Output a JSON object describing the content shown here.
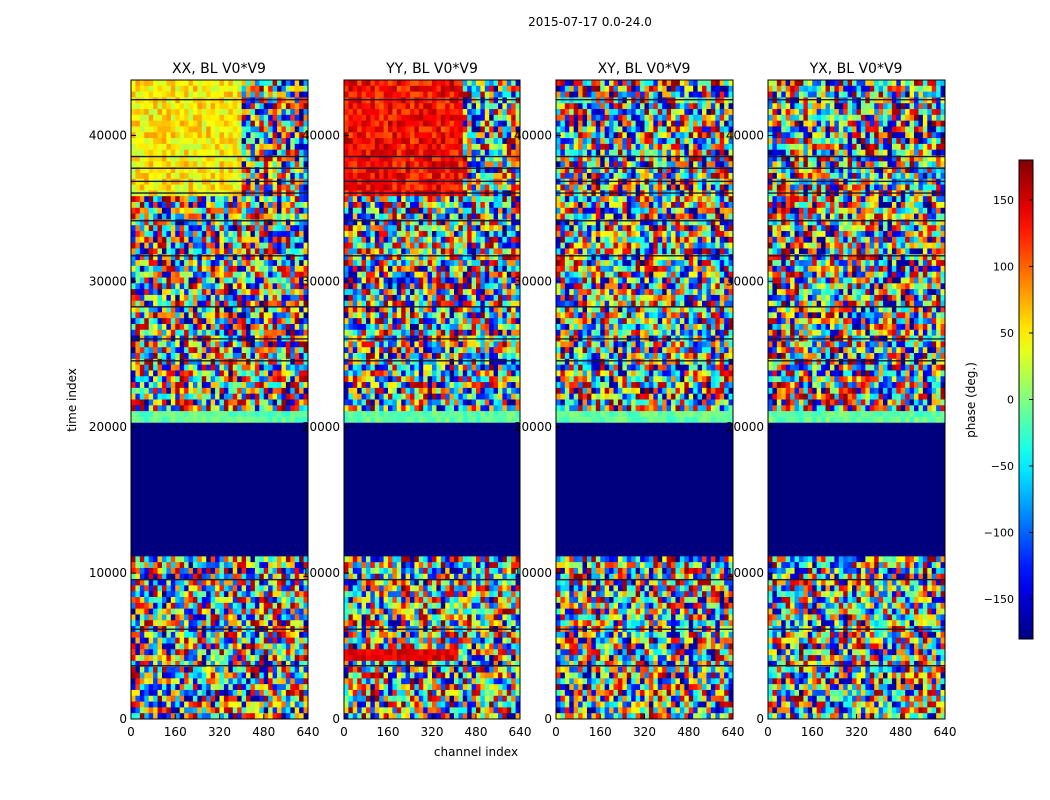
{
  "figure": {
    "suptitle": "2015-07-17 0.0-24.0"
  },
  "colors": {
    "background_block": "#00007f",
    "frame": "#000000"
  },
  "chart_data": {
    "type": "heatmap",
    "suptitle": "2015-07-17 0.0-24.0",
    "xlabel": "channel index",
    "ylabel": "time index",
    "xlim": [
      0,
      640
    ],
    "ylim": [
      0,
      43800
    ],
    "xticks": [
      0,
      160,
      320,
      480,
      640
    ],
    "yticks": [
      0,
      10000,
      20000,
      30000,
      40000
    ],
    "colormap": "jet",
    "colorbar": {
      "label": "phase (deg.)",
      "range": [
        -180,
        180
      ],
      "ticks": [
        -150,
        -100,
        -50,
        0,
        50,
        100,
        150
      ]
    },
    "flagged_time_range": [
      11300,
      20400
    ],
    "panels": [
      {
        "title": "XX, BL V0*V9",
        "bias": "xx"
      },
      {
        "title": "YY, BL V0*V9",
        "bias": "yy"
      },
      {
        "title": "XY, BL V0*V9",
        "bias": "none"
      },
      {
        "title": "YX, BL V0*V9",
        "bias": "none"
      }
    ]
  }
}
